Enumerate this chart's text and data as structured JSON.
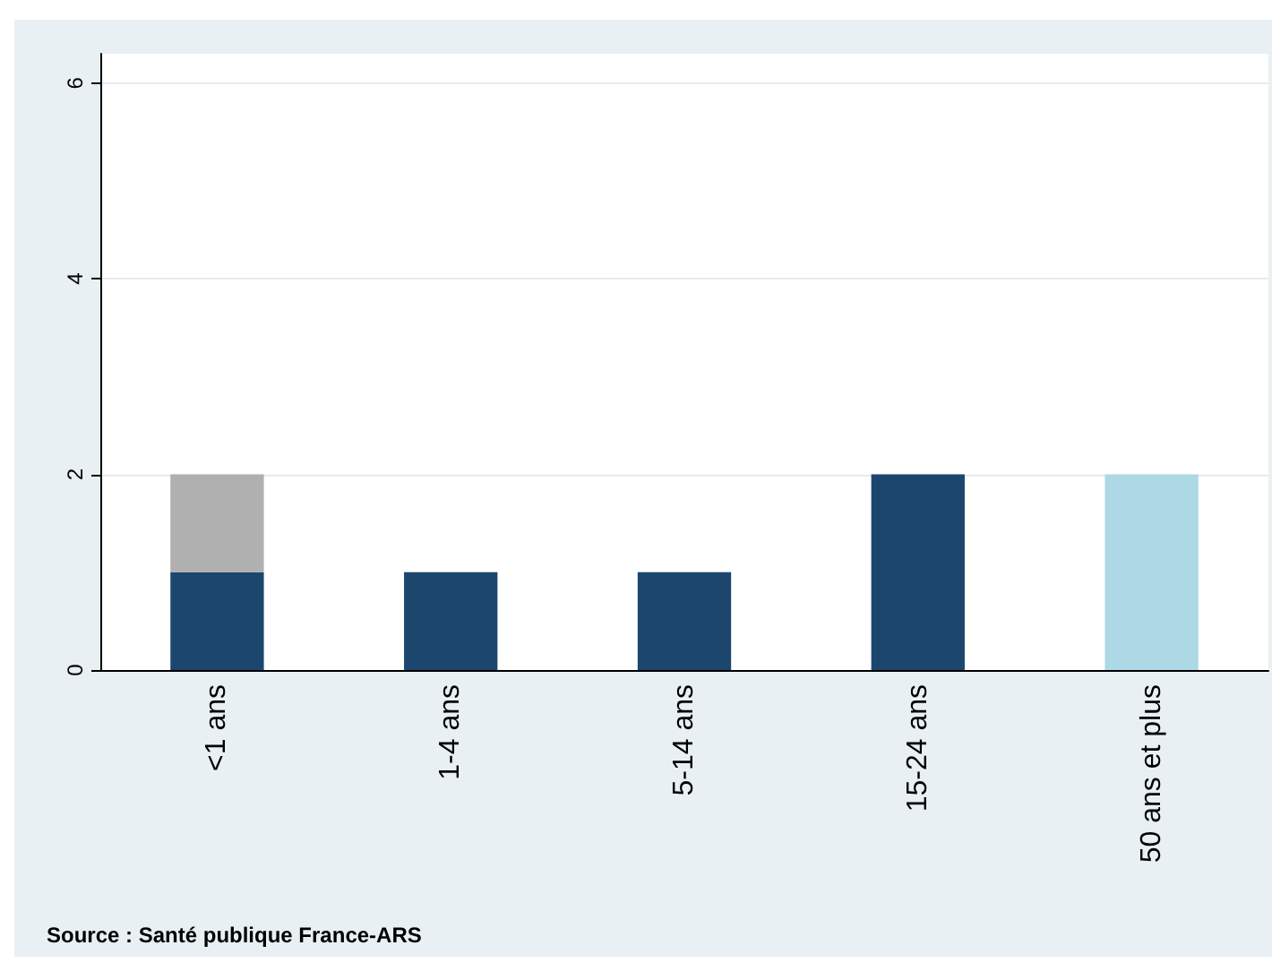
{
  "chart_data": {
    "type": "bar",
    "stacked": true,
    "categories": [
      "<1 ans",
      "1-4 ans",
      "5-14 ans",
      "15-24 ans",
      "50 ans et plus"
    ],
    "series": [
      {
        "color": "#1c466e",
        "values": [
          1,
          1,
          1,
          2,
          null
        ]
      },
      {
        "color": "#b0b0b0",
        "values": [
          1,
          null,
          null,
          null,
          null
        ]
      },
      {
        "color": "#add8e6",
        "values": [
          null,
          null,
          null,
          null,
          2
        ]
      }
    ],
    "ylim": [
      0,
      6.3
    ],
    "yticks": [
      0,
      2,
      4,
      6
    ],
    "grid": "y",
    "annotations": [
      "Source : Santé publique France-ARS"
    ]
  }
}
